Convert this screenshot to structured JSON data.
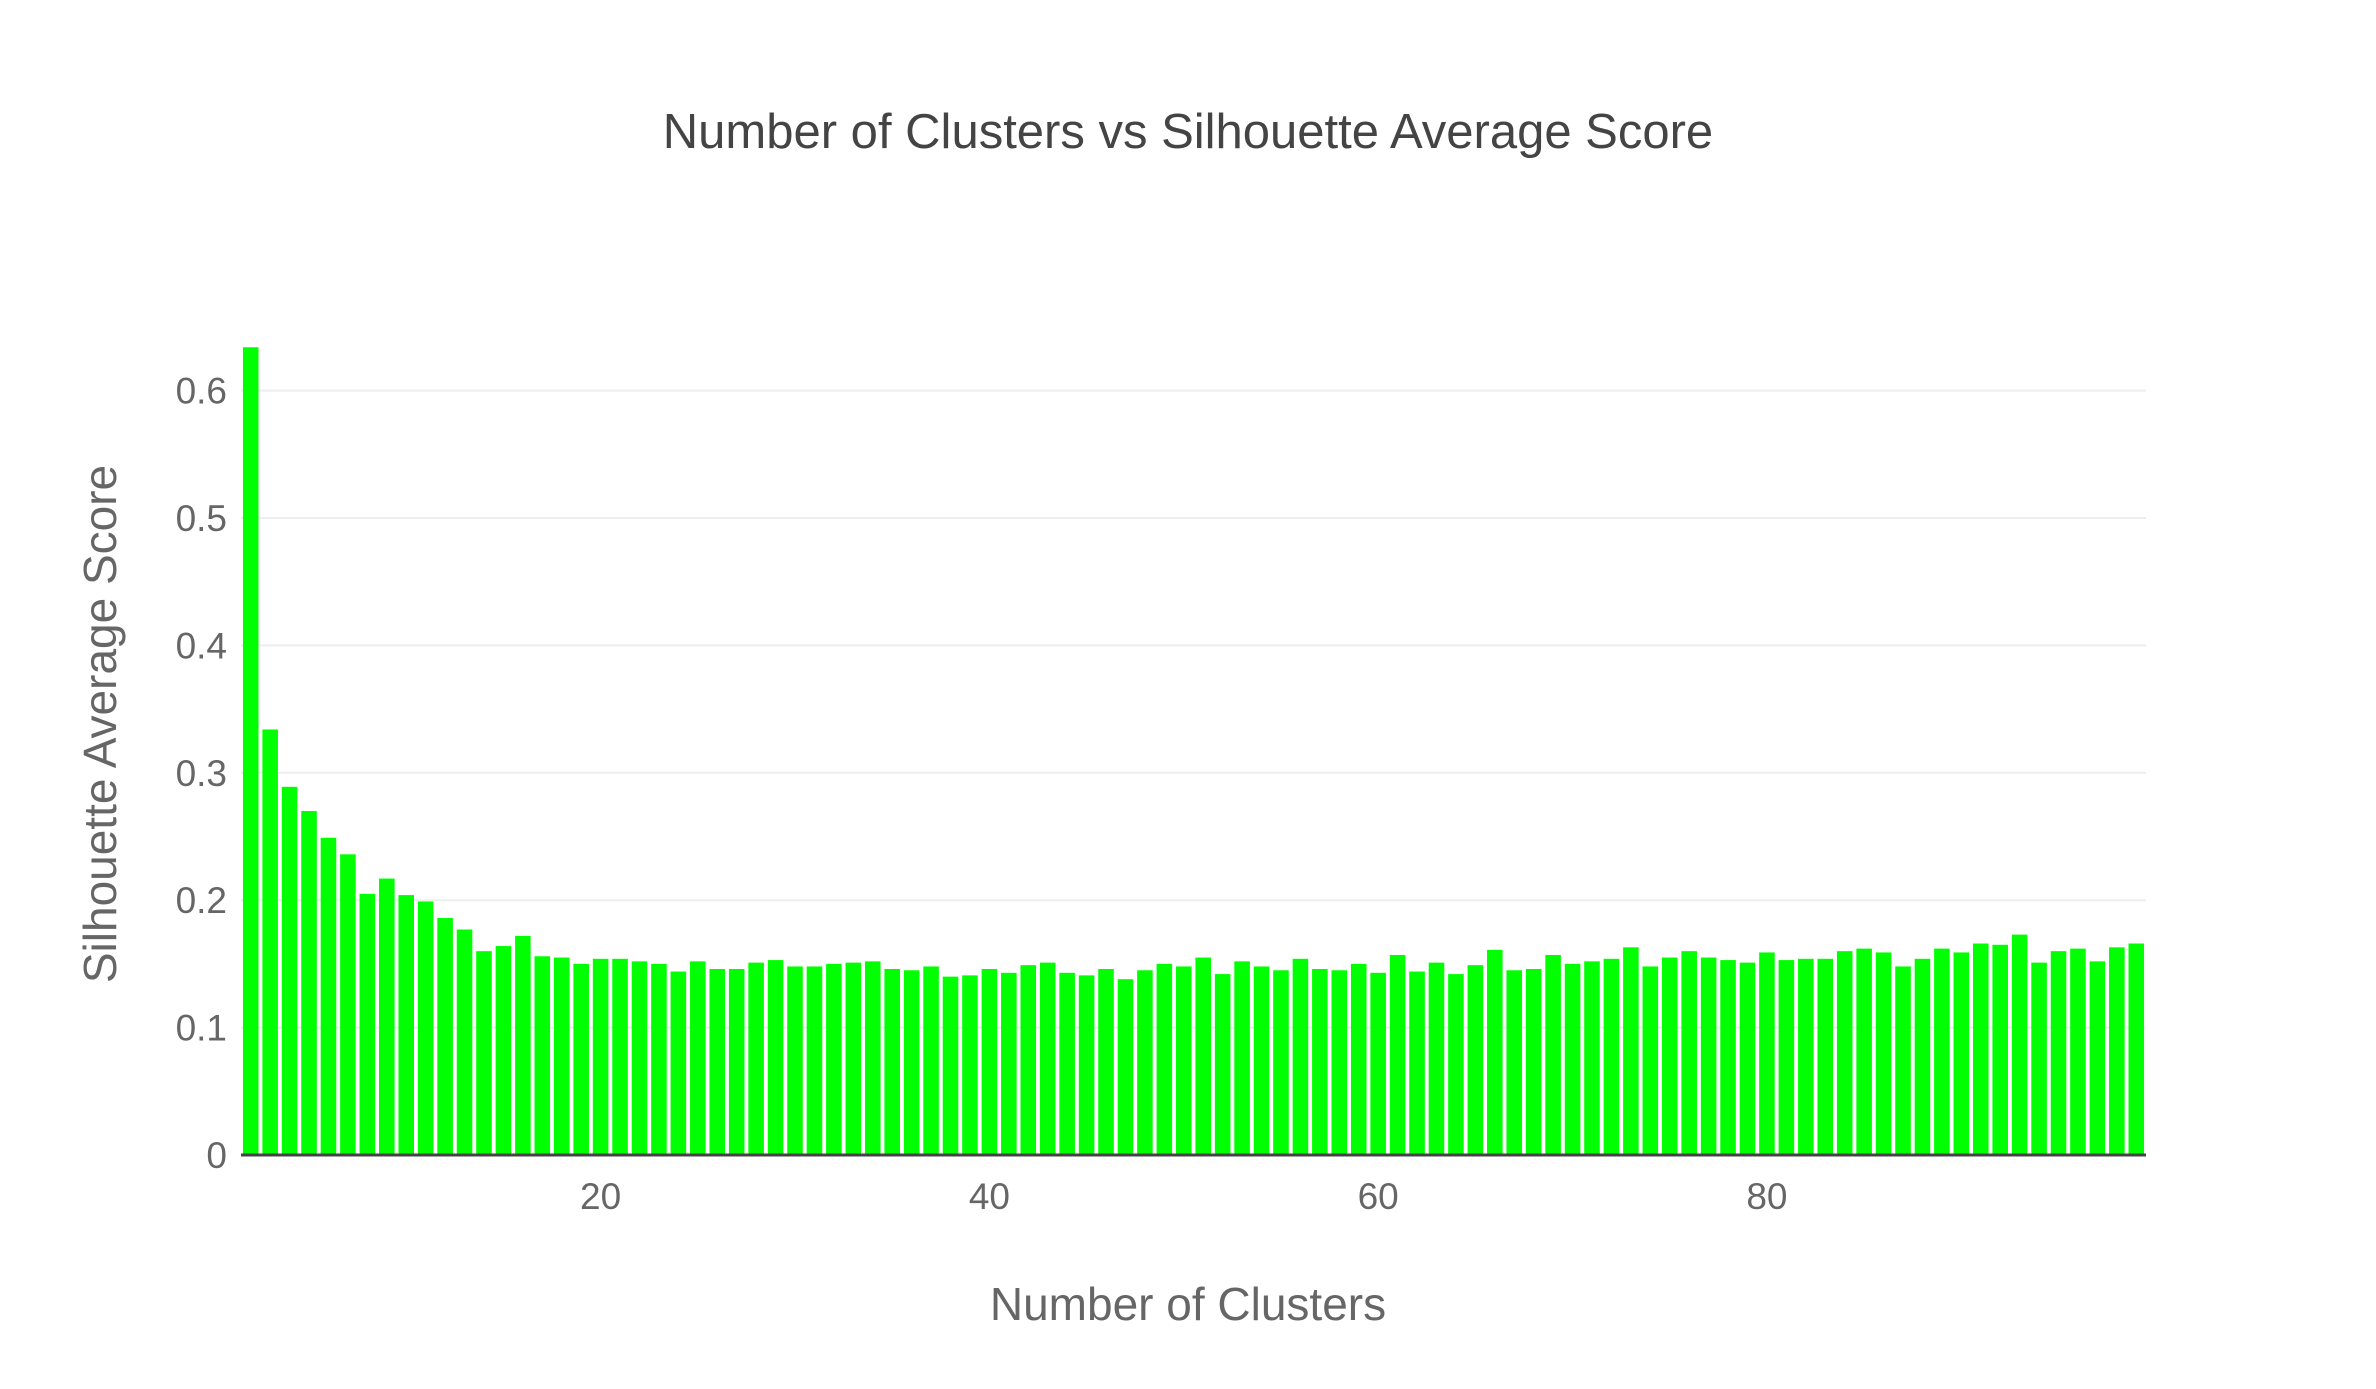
{
  "chart_data": {
    "type": "bar",
    "title": "Number of Clusters vs Silhouette Average Score",
    "xlabel": "Number of Clusters",
    "ylabel": "Silhouette Average Score",
    "color": "#00ff00",
    "x": [
      2,
      3,
      4,
      5,
      6,
      7,
      8,
      9,
      10,
      11,
      12,
      13,
      14,
      15,
      16,
      17,
      18,
      19,
      20,
      21,
      22,
      23,
      24,
      25,
      26,
      27,
      28,
      29,
      30,
      31,
      32,
      33,
      34,
      35,
      36,
      37,
      38,
      39,
      40,
      41,
      42,
      43,
      44,
      45,
      46,
      47,
      48,
      49,
      50,
      51,
      52,
      53,
      54,
      55,
      56,
      57,
      58,
      59,
      60,
      61,
      62,
      63,
      64,
      65,
      66,
      67,
      68,
      69,
      70,
      71,
      72,
      73,
      74,
      75,
      76,
      77,
      78,
      79,
      80,
      81,
      82,
      83,
      84,
      85,
      86,
      87,
      88,
      89,
      90,
      91,
      92,
      93,
      94,
      95,
      96,
      97,
      98,
      99
    ],
    "values": [
      0.634,
      0.334,
      0.289,
      0.27,
      0.249,
      0.236,
      0.205,
      0.217,
      0.204,
      0.199,
      0.186,
      0.177,
      0.16,
      0.164,
      0.172,
      0.156,
      0.155,
      0.15,
      0.154,
      0.154,
      0.152,
      0.15,
      0.144,
      0.152,
      0.146,
      0.146,
      0.151,
      0.153,
      0.148,
      0.148,
      0.15,
      0.151,
      0.152,
      0.146,
      0.145,
      0.148,
      0.14,
      0.141,
      0.146,
      0.143,
      0.149,
      0.151,
      0.143,
      0.141,
      0.146,
      0.138,
      0.145,
      0.15,
      0.148,
      0.155,
      0.142,
      0.152,
      0.148,
      0.145,
      0.154,
      0.146,
      0.145,
      0.15,
      0.143,
      0.157,
      0.144,
      0.151,
      0.142,
      0.149,
      0.161,
      0.145,
      0.146,
      0.157,
      0.15,
      0.152,
      0.154,
      0.163,
      0.148,
      0.155,
      0.16,
      0.155,
      0.153,
      0.151,
      0.159,
      0.153,
      0.154,
      0.154,
      0.16,
      0.162,
      0.159,
      0.148,
      0.154,
      0.162,
      0.159,
      0.166,
      0.165,
      0.173,
      0.151,
      0.16,
      0.162,
      0.152,
      0.163,
      0.166
    ],
    "xlim": [
      1.5,
      99.5
    ],
    "ylim": [
      0,
      0.6405
    ],
    "yticks": [
      0,
      0.1,
      0.2,
      0.3,
      0.4,
      0.5,
      0.6
    ],
    "ytick_labels": [
      "0",
      "0.1",
      "0.2",
      "0.3",
      "0.4",
      "0.5",
      "0.6"
    ],
    "xticks": [
      20,
      40,
      60,
      80
    ],
    "xtick_labels": [
      "20",
      "40",
      "60",
      "80"
    ],
    "grid": "horizontal"
  }
}
